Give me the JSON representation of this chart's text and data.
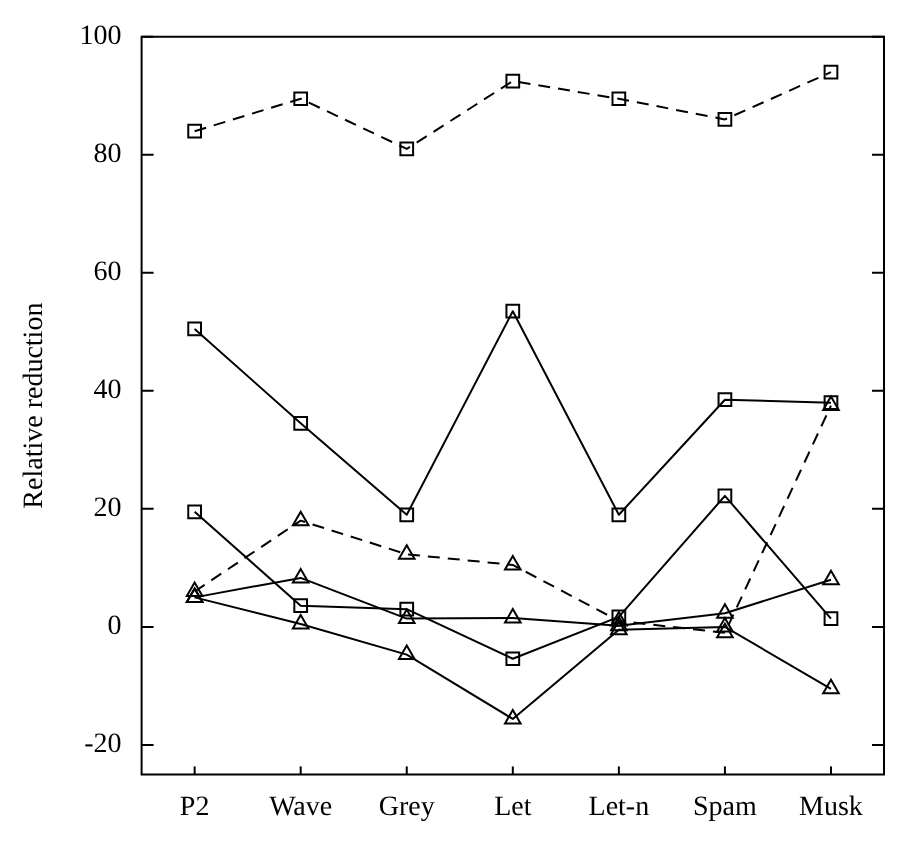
{
  "chart_data": {
    "type": "line",
    "ylabel": "Relative reduction",
    "categories": [
      "P2",
      "Wave",
      "Grey",
      "Let",
      "Let-n",
      "Spam",
      "Musk"
    ],
    "series": [
      {
        "color": "#000000",
        "marker": "square",
        "line_style": "dashed",
        "values": [
          84,
          89.5,
          81,
          92.5,
          89.5,
          86,
          94
        ]
      },
      {
        "color": "#000000",
        "marker": "square",
        "line_style": "solid",
        "values": [
          50.5,
          34.5,
          19,
          53.5,
          19,
          38.5,
          38
        ]
      },
      {
        "color": "#000000",
        "marker": "square",
        "line_style": "solid",
        "values": [
          19.5,
          3.6,
          3,
          -5.4,
          1.7,
          22.2,
          1.4
        ]
      },
      {
        "color": "#000000",
        "marker": "triangle",
        "line_style": "dashed",
        "values": [
          6,
          18,
          12.3,
          10.5,
          1,
          -1,
          37.5
        ]
      },
      {
        "color": "#000000",
        "marker": "triangle",
        "line_style": "solid",
        "values": [
          5,
          8.3,
          1.4,
          1.5,
          0.2,
          2.3,
          8
        ]
      },
      {
        "color": "#000000",
        "marker": "triangle",
        "line_style": "solid",
        "values": [
          5,
          0.5,
          -4.7,
          -15.6,
          -0.5,
          0,
          -10.5
        ]
      }
    ],
    "ylim": [
      -25,
      100
    ],
    "yticks": [
      -20,
      0,
      20,
      40,
      60,
      80,
      100
    ],
    "grid": false,
    "legend": false
  }
}
